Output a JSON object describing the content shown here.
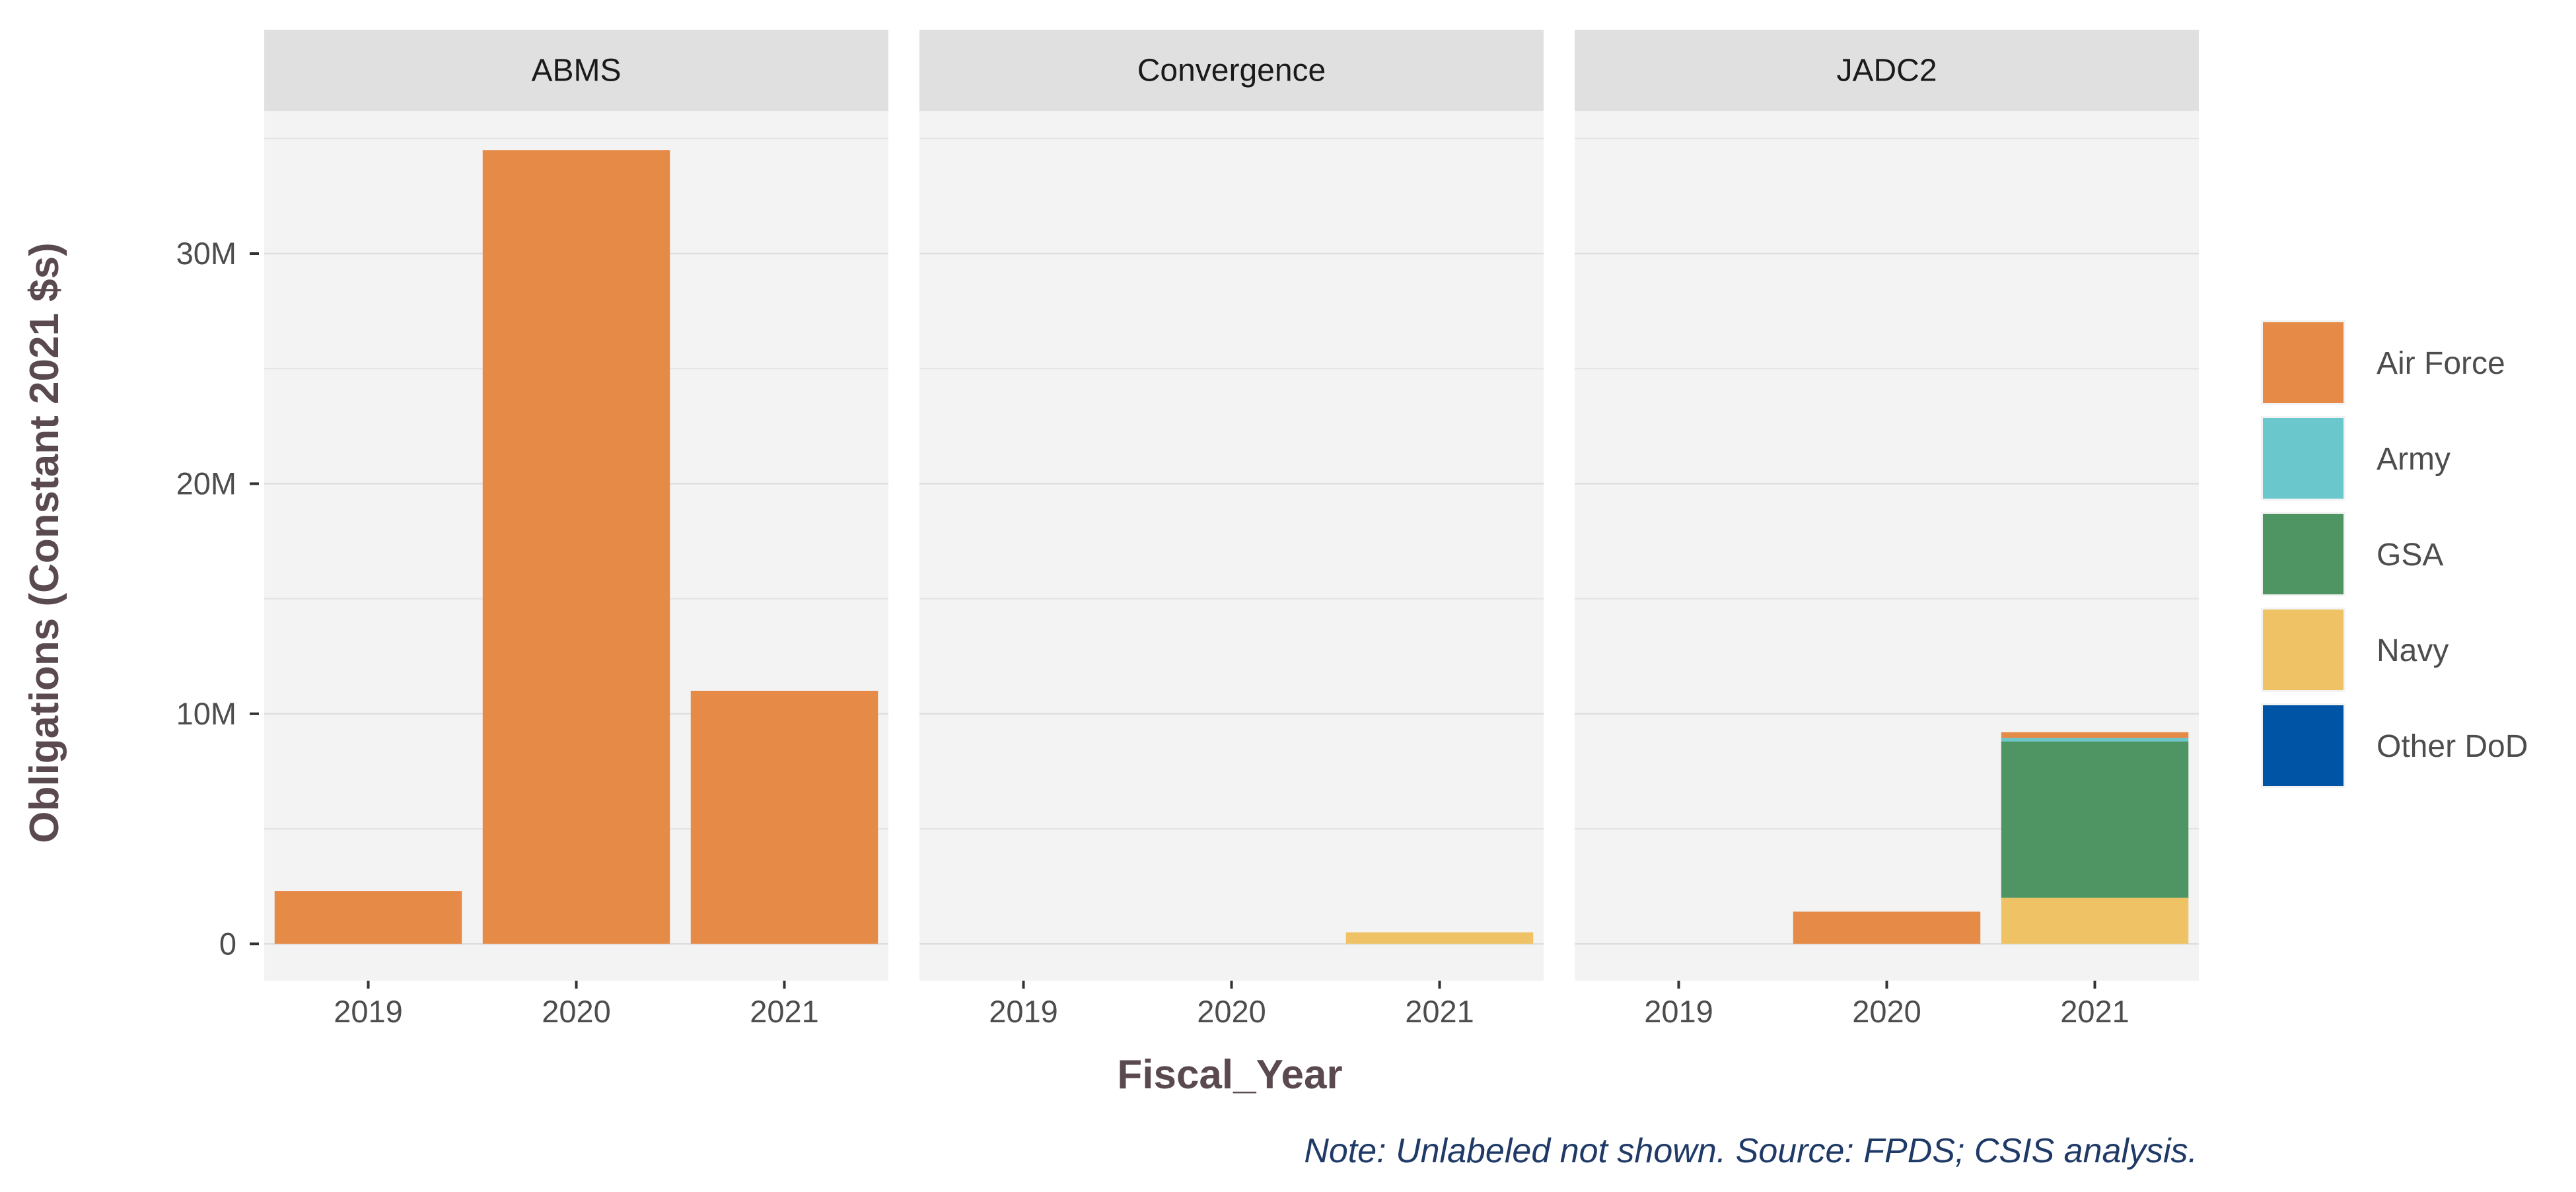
{
  "chart_data": {
    "type": "bar",
    "stacked": true,
    "facet_by": "Project",
    "facets": [
      {
        "name": "ABMS",
        "categories": [
          "2019",
          "2020",
          "2021"
        ],
        "series": [
          {
            "name": "Air Force",
            "values": [
              2.3,
              34.5,
              11.0
            ]
          },
          {
            "name": "Army",
            "values": [
              0,
              0,
              0
            ]
          },
          {
            "name": "GSA",
            "values": [
              0,
              0,
              0
            ]
          },
          {
            "name": "Navy",
            "values": [
              0,
              0,
              0
            ]
          },
          {
            "name": "Other DoD",
            "values": [
              0,
              0,
              0
            ]
          }
        ]
      },
      {
        "name": "Convergence",
        "categories": [
          "2019",
          "2020",
          "2021"
        ],
        "series": [
          {
            "name": "Air Force",
            "values": [
              0,
              0,
              0
            ]
          },
          {
            "name": "Army",
            "values": [
              0,
              0,
              0
            ]
          },
          {
            "name": "GSA",
            "values": [
              0,
              0,
              0
            ]
          },
          {
            "name": "Navy",
            "values": [
              0,
              0,
              0.5
            ]
          },
          {
            "name": "Other DoD",
            "values": [
              0,
              0,
              0
            ]
          }
        ]
      },
      {
        "name": "JADC2",
        "categories": [
          "2019",
          "2020",
          "2021"
        ],
        "series": [
          {
            "name": "Air Force",
            "values": [
              0,
              1.4,
              0.25
            ]
          },
          {
            "name": "Army",
            "values": [
              0,
              0,
              0.15
            ]
          },
          {
            "name": "GSA",
            "values": [
              0,
              0,
              6.8
            ]
          },
          {
            "name": "Navy",
            "values": [
              0,
              0,
              2.0
            ]
          },
          {
            "name": "Other DoD",
            "values": [
              0,
              0,
              0
            ]
          }
        ]
      }
    ],
    "series_colors": {
      "Air Force": "#E58B47",
      "Army": "#6AC7CC",
      "GSA": "#4F9564",
      "Navy": "#EFC365",
      "Other DoD": "#0054A6"
    },
    "stack_order": [
      "Navy",
      "GSA",
      "Army",
      "Air Force",
      "Other DoD"
    ],
    "xlabel": "Fiscal_Year",
    "ylabel": "Obligations (Constant 2021 $s)",
    "yunit": "millions",
    "yticks": [
      {
        "value": 0,
        "label": "0"
      },
      {
        "value": 10,
        "label": "10M"
      },
      {
        "value": 20,
        "label": "20M"
      },
      {
        "value": 30,
        "label": "30M"
      }
    ],
    "ylim": [
      -1.6,
      36.2
    ],
    "grid": true,
    "legend_position": "right",
    "legend": [
      "Air Force",
      "Army",
      "GSA",
      "Navy",
      "Other DoD"
    ],
    "caption": "Note: Unlabeled not shown. Source: FPDS; CSIS analysis."
  }
}
